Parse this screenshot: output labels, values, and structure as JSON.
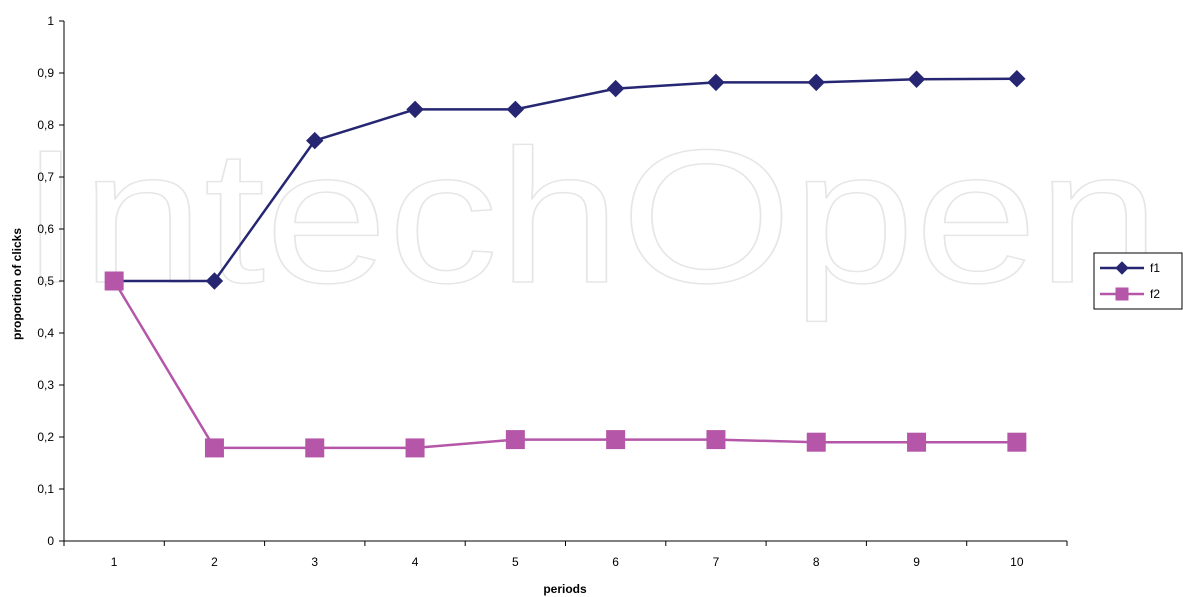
{
  "chart_data": {
    "type": "line",
    "title": "",
    "xlabel": "periods",
    "ylabel": "proportion of clicks",
    "categories": [
      "1",
      "2",
      "3",
      "4",
      "5",
      "6",
      "7",
      "8",
      "9",
      "10"
    ],
    "y_ticks": [
      "0",
      "0,1",
      "0,2",
      "0,3",
      "0,4",
      "0,5",
      "0,6",
      "0,7",
      "0,8",
      "0,9",
      "1"
    ],
    "ylim": [
      0,
      1
    ],
    "grid": false,
    "legend_position": "right",
    "series": [
      {
        "name": "f1",
        "marker": "diamond",
        "color": "#262672",
        "values": [
          0.5,
          0.5,
          0.77,
          0.83,
          0.83,
          0.87,
          0.882,
          0.882,
          0.888,
          0.889
        ]
      },
      {
        "name": "f2",
        "marker": "square",
        "color": "#b556a8",
        "values": [
          0.5,
          0.179,
          0.179,
          0.179,
          0.195,
          0.195,
          0.195,
          0.19,
          0.19,
          0.19
        ]
      }
    ],
    "watermark": "IntechOpen"
  }
}
